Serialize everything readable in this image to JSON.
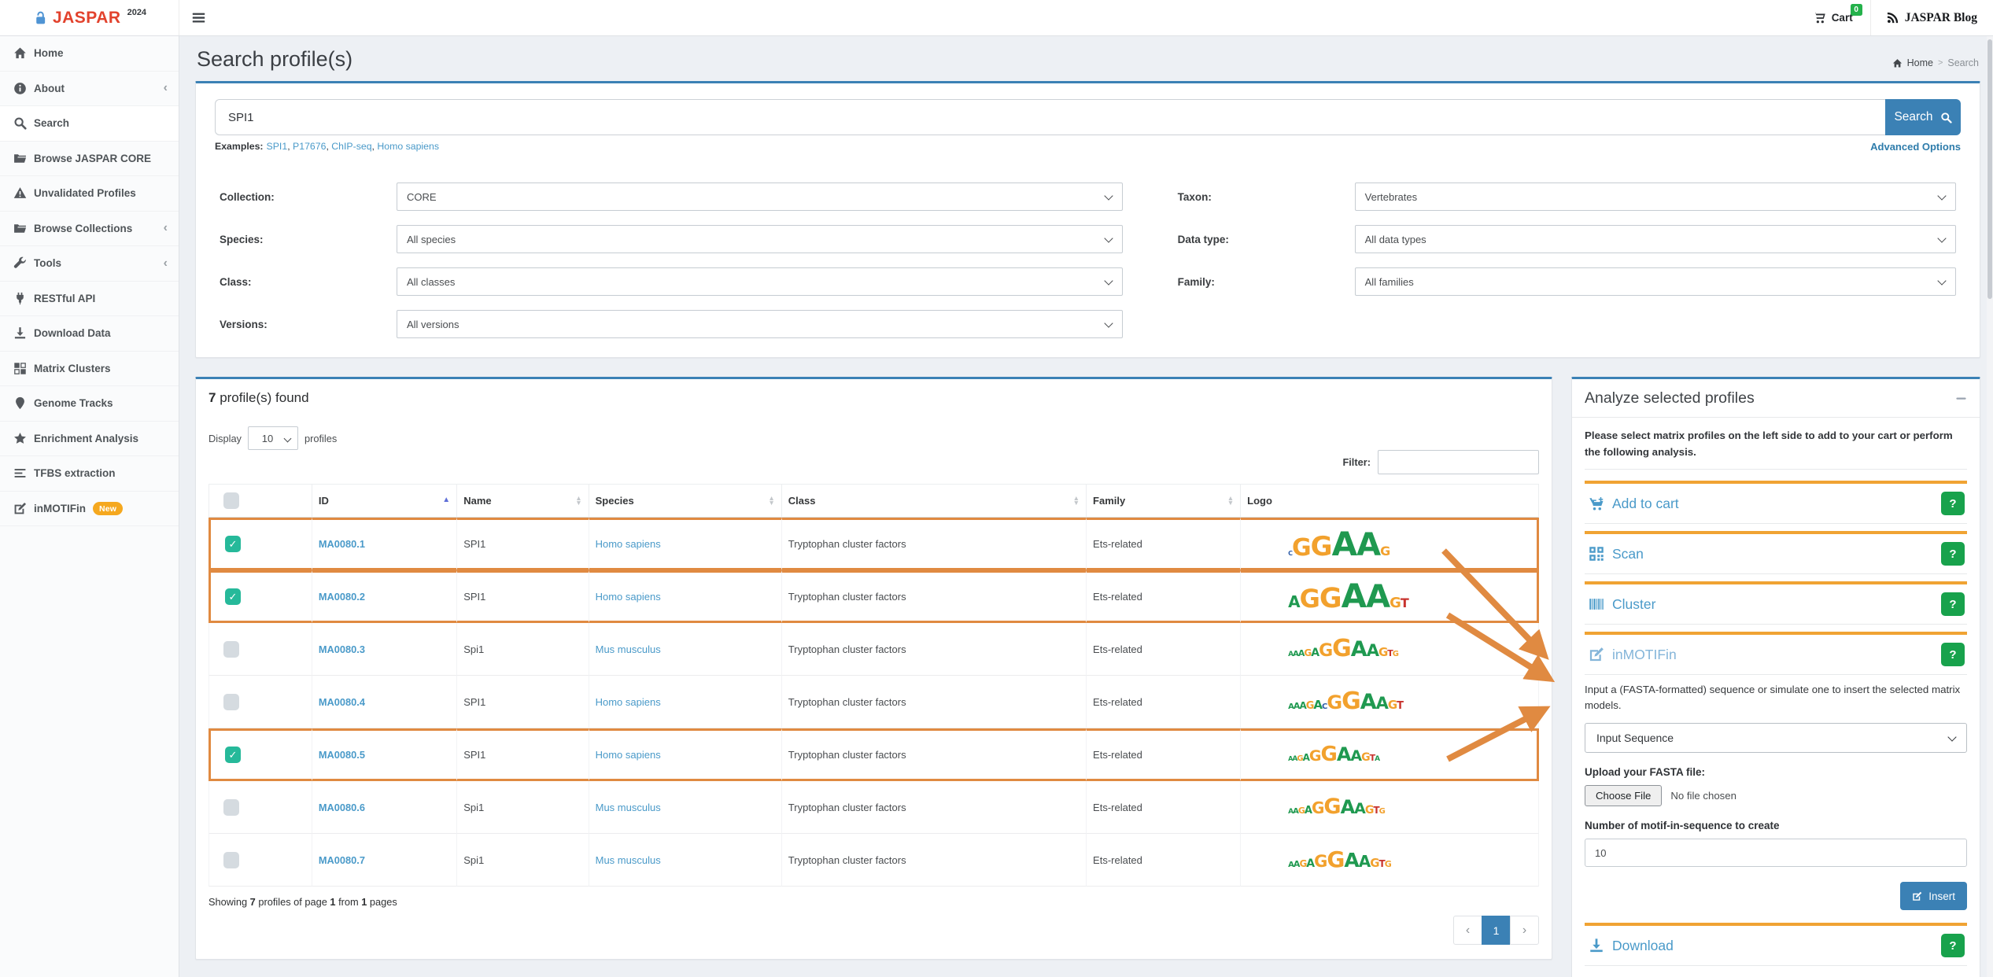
{
  "topbar": {
    "brand": "JASPAR",
    "brand_sup": "2024",
    "cart_label": "Cart",
    "cart_badge": "0",
    "blog_label": "JASPAR Blog"
  },
  "sidebar": {
    "items": [
      {
        "icon": "home-icon",
        "label": "Home"
      },
      {
        "icon": "info-icon",
        "label": "About",
        "chevron": true
      },
      {
        "icon": "search-icon",
        "label": "Search",
        "active": true
      },
      {
        "icon": "folder-icon",
        "label": "Browse JASPAR CORE"
      },
      {
        "icon": "warning-icon",
        "label": "Unvalidated Profiles"
      },
      {
        "icon": "folder-icon",
        "label": "Browse Collections",
        "chevron": true
      },
      {
        "icon": "wrench-icon",
        "label": "Tools",
        "chevron": true
      },
      {
        "icon": "plug-icon",
        "label": "RESTful API"
      },
      {
        "icon": "download-icon",
        "label": "Download Data"
      },
      {
        "icon": "grid-icon",
        "label": "Matrix Clusters"
      },
      {
        "icon": "marker-icon",
        "label": "Genome Tracks"
      },
      {
        "icon": "star-icon",
        "label": "Enrichment Analysis"
      },
      {
        "icon": "lines-icon",
        "label": "TFBS extraction"
      },
      {
        "icon": "edit-icon",
        "label": "inMOTIFin",
        "badge": "New"
      }
    ]
  },
  "page": {
    "title": "Search profile(s)",
    "breadcrumb_home": "Home",
    "breadcrumb_sep": ">",
    "breadcrumb_current": "Search"
  },
  "search": {
    "value": "SPI1",
    "button_label": "Search",
    "examples_label": "Examples:",
    "examples": [
      "SPI1",
      "P17676",
      "ChIP-seq",
      "Homo sapiens"
    ],
    "advanced_options": "Advanced Options"
  },
  "filters": [
    {
      "label": "Collection:",
      "value": "CORE"
    },
    {
      "label": "Taxon:",
      "value": "Vertebrates"
    },
    {
      "label": "Species:",
      "value": "All species"
    },
    {
      "label": "Data type:",
      "value": "All data types"
    },
    {
      "label": "Class:",
      "value": "All classes"
    },
    {
      "label": "Family:",
      "value": "All families"
    },
    {
      "label": "Versions:",
      "value": "All versions"
    }
  ],
  "results": {
    "found_bold": "7",
    "found_rest": " profile(s) found",
    "display_label": "Display",
    "display_value": "10",
    "display_suffix": "profiles",
    "filter_label": "Filter:",
    "columns": [
      {
        "label": "",
        "sort": "none"
      },
      {
        "label": "ID",
        "sort": "asc"
      },
      {
        "label": "Name",
        "sort": "both"
      },
      {
        "label": "Species",
        "sort": "both"
      },
      {
        "label": "Class",
        "sort": "both"
      },
      {
        "label": "Family",
        "sort": "both"
      },
      {
        "label": "Logo",
        "sort": "none"
      }
    ],
    "rows": [
      {
        "checked": true,
        "selected": true,
        "id": "MA0080.1",
        "name": "SPI1",
        "species": "Homo sapiens",
        "class": "Tryptophan cluster factors",
        "family": "Ets-related",
        "logo": [
          [
            "C",
            8
          ],
          [
            "G",
            30
          ],
          [
            "G",
            34
          ],
          [
            "A",
            42
          ],
          [
            "A",
            40
          ],
          [
            "G",
            16
          ]
        ]
      },
      {
        "checked": true,
        "selected": true,
        "id": "MA0080.2",
        "name": "SPI1",
        "species": "Homo sapiens",
        "class": "Tryptophan cluster factors",
        "family": "Ets-related",
        "logo": [
          [
            "A",
            20
          ],
          [
            "G",
            32
          ],
          [
            "G",
            35
          ],
          [
            "A",
            42
          ],
          [
            "A",
            40
          ],
          [
            "G",
            18
          ],
          [
            "T",
            16
          ]
        ]
      },
      {
        "checked": false,
        "selected": false,
        "id": "MA0080.3",
        "name": "Spi1",
        "species": "Mus musculus",
        "class": "Tryptophan cluster factors",
        "family": "Ets-related",
        "logo": [
          [
            "A",
            9
          ],
          [
            "A",
            10
          ],
          [
            "A",
            11
          ],
          [
            "G",
            12
          ],
          [
            "A",
            14
          ],
          [
            "G",
            22
          ],
          [
            "G",
            30
          ],
          [
            "A",
            27
          ],
          [
            "A",
            21
          ],
          [
            "G",
            15
          ],
          [
            "T",
            11
          ],
          [
            "G",
            10
          ]
        ]
      },
      {
        "checked": false,
        "selected": false,
        "id": "MA0080.4",
        "name": "SPI1",
        "species": "Homo sapiens",
        "class": "Tryptophan cluster factors",
        "family": "Ets-related",
        "logo": [
          [
            "A",
            10
          ],
          [
            "A",
            11
          ],
          [
            "A",
            12
          ],
          [
            "G",
            13
          ],
          [
            "A",
            15
          ],
          [
            "C",
            10
          ],
          [
            "G",
            24
          ],
          [
            "G",
            30
          ],
          [
            "A",
            27
          ],
          [
            "A",
            21
          ],
          [
            "G",
            15
          ],
          [
            "T",
            13
          ]
        ]
      },
      {
        "checked": true,
        "selected": true,
        "id": "MA0080.5",
        "name": "SPI1",
        "species": "Homo sapiens",
        "class": "Tryptophan cluster factors",
        "family": "Ets-related",
        "logo": [
          [
            "A",
            8
          ],
          [
            "A",
            9
          ],
          [
            "G",
            10
          ],
          [
            "A",
            12
          ],
          [
            "G",
            19
          ],
          [
            "G",
            26
          ],
          [
            "A",
            24
          ],
          [
            "A",
            19
          ],
          [
            "G",
            14
          ],
          [
            "T",
            11
          ],
          [
            "A",
            9
          ]
        ]
      },
      {
        "checked": false,
        "selected": false,
        "id": "MA0080.6",
        "name": "Spi1",
        "species": "Mus musculus",
        "class": "Tryptophan cluster factors",
        "family": "Ets-related",
        "logo": [
          [
            "A",
            9
          ],
          [
            "A",
            10
          ],
          [
            "G",
            11
          ],
          [
            "A",
            13
          ],
          [
            "G",
            20
          ],
          [
            "G",
            27
          ],
          [
            "A",
            24
          ],
          [
            "A",
            19
          ],
          [
            "G",
            14
          ],
          [
            "T",
            12
          ],
          [
            "G",
            10
          ]
        ]
      },
      {
        "checked": false,
        "selected": false,
        "id": "MA0080.7",
        "name": "Spi1",
        "species": "Mus musculus",
        "class": "Tryptophan cluster factors",
        "family": "Ets-related",
        "logo": [
          [
            "A",
            10
          ],
          [
            "A",
            11
          ],
          [
            "G",
            12
          ],
          [
            "A",
            14
          ],
          [
            "G",
            21
          ],
          [
            "G",
            28
          ],
          [
            "A",
            25
          ],
          [
            "A",
            20
          ],
          [
            "G",
            15
          ],
          [
            "T",
            12
          ],
          [
            "G",
            11
          ]
        ]
      }
    ],
    "showing": [
      {
        "text": "Showing ",
        "bold": false
      },
      {
        "text": "7",
        "bold": true
      },
      {
        "text": " profiles of page ",
        "bold": false
      },
      {
        "text": "1",
        "bold": true
      },
      {
        "text": " from ",
        "bold": false
      },
      {
        "text": "1",
        "bold": true
      },
      {
        "text": " pages",
        "bold": false
      }
    ],
    "pagination": {
      "prev": "‹",
      "page": "1",
      "next": "›"
    }
  },
  "panel": {
    "title": "Analyze selected profiles",
    "intro": "Please select matrix profiles on the left side to add to your cart or perform the following analysis.",
    "sections": [
      {
        "key": "add-to-cart",
        "icon": "cart-plus-icon",
        "label": "Add to cart",
        "help": "?"
      },
      {
        "key": "scan",
        "icon": "qr-icon",
        "label": "Scan",
        "help": "?"
      },
      {
        "key": "cluster",
        "icon": "barcode-icon",
        "label": "Cluster",
        "help": "?"
      },
      {
        "key": "inmotifin",
        "icon": "edit-icon",
        "label": "inMOTIFin",
        "help": "?",
        "light": true
      },
      {
        "key": "download",
        "icon": "download-icon",
        "label": "Download",
        "help": "?"
      }
    ],
    "inmotifin": {
      "description": "Input a (FASTA-formatted) sequence or simulate one to insert the selected matrix models.",
      "select_value": "Input Sequence",
      "upload_label": "Upload your FASTA file:",
      "choose_file": "Choose File",
      "no_file": "No file chosen",
      "number_label": "Number of motif-in-sequence to create",
      "number_value": "10",
      "insert_label": "Insert"
    }
  },
  "colors": {
    "accent_blue": "#3b81b5",
    "link_blue": "#4a9ac9",
    "section_orange": "#f0a333",
    "highlight_orange": "#e08a41",
    "check_green": "#26b99a",
    "help_green": "#18a24c",
    "badge_green": "#24b14b",
    "brand_red": "#e2422d",
    "new_badge_orange": "#f5a81f",
    "logo_colors": {
      "A": "#1f9950",
      "C": "#2b5ba8",
      "G": "#f2a12d",
      "T": "#c8332e"
    }
  }
}
